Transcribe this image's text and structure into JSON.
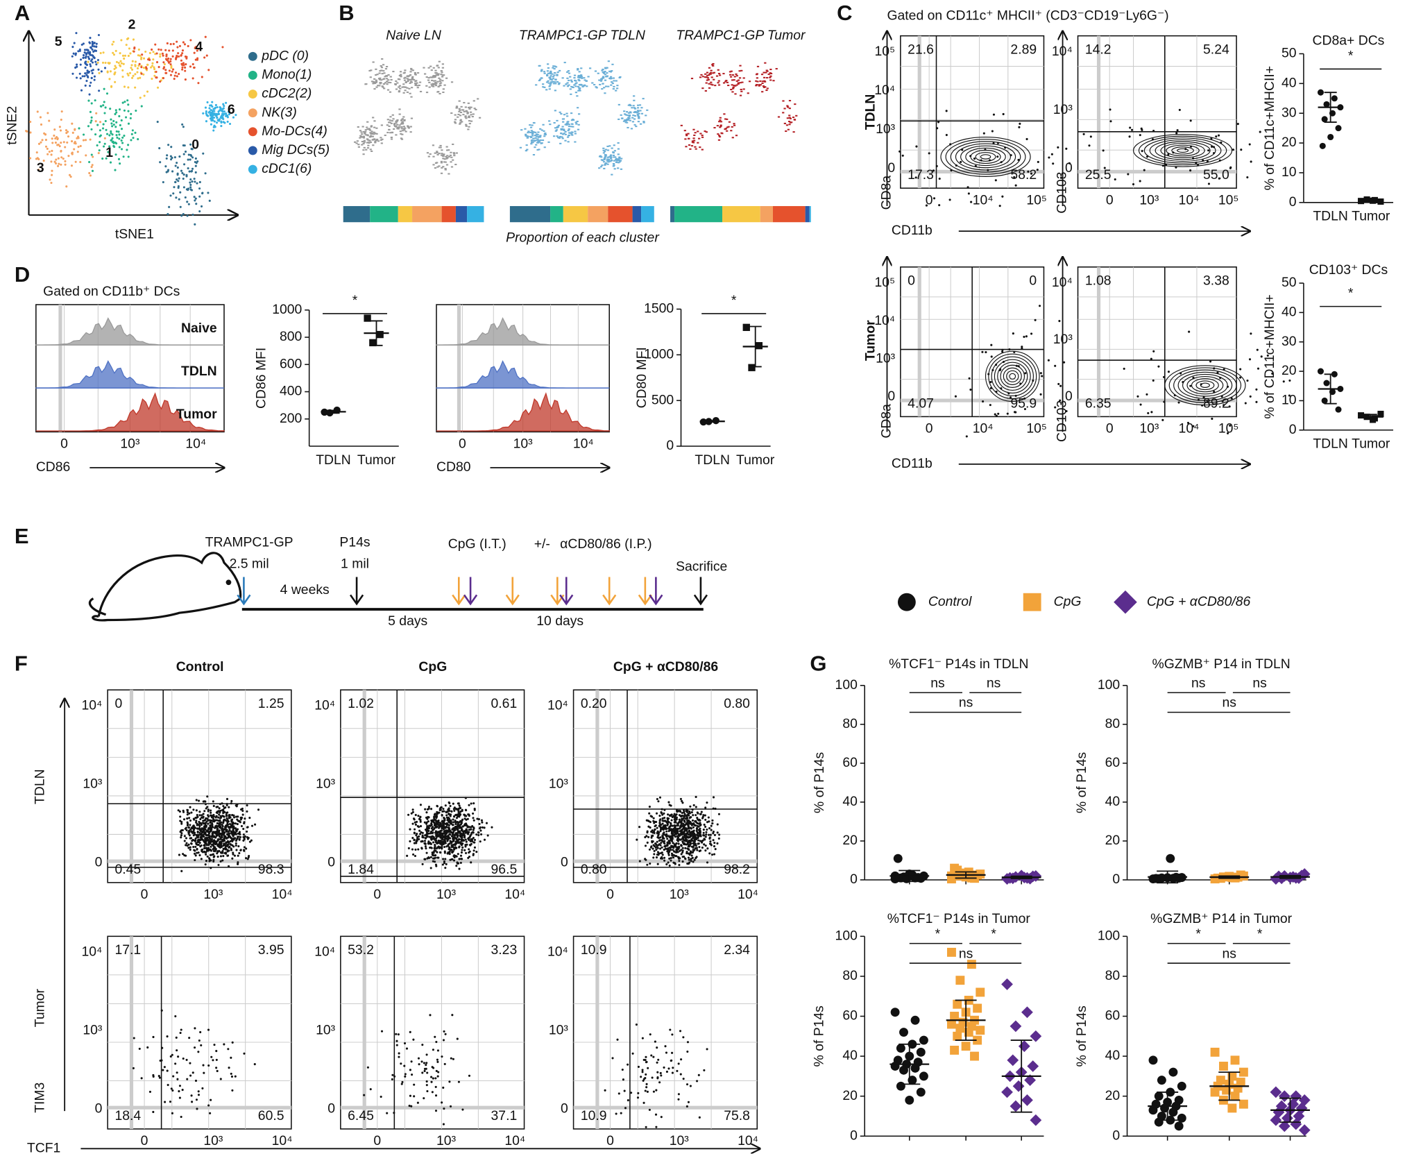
{
  "panels": {
    "A": {
      "label": "A",
      "x_axis": "tSNE1",
      "y_axis": "tSNE2",
      "cluster_numbers": [
        "0",
        "1",
        "2",
        "3",
        "4",
        "5",
        "6"
      ],
      "legend": [
        {
          "name": "pDC (0)",
          "color": "#2f6d8c"
        },
        {
          "name": "Mono(1)",
          "color": "#22b387"
        },
        {
          "name": "cDC2(2)",
          "color": "#f6c744"
        },
        {
          "name": "NK(3)",
          "color": "#f4a261"
        },
        {
          "name": "Mo-DCs(4)",
          "color": "#e5522d"
        },
        {
          "name": "Mig DCs(5)",
          "color": "#2a5aa8"
        },
        {
          "name": "cDC1(6)",
          "color": "#35b1e3"
        }
      ]
    },
    "B": {
      "label": "B",
      "titles": [
        "Naive LN",
        "TRAMPC1-GP TDLN",
        "TRAMPC1-GP Tumor"
      ],
      "caption": "Proportion of each cluster",
      "proportions": [
        [
          19,
          20,
          10,
          21,
          10,
          8,
          12
        ],
        [
          28,
          9,
          17,
          14,
          17,
          6,
          9
        ],
        [
          3,
          34,
          27,
          9,
          23,
          3,
          1
        ]
      ]
    },
    "C": {
      "label": "C",
      "title": "Gated on CD11c⁺ MHCII⁺ (CD3⁻CD19⁻Ly6G⁻)",
      "rows": [
        "TDLN",
        "Tumor"
      ],
      "x_axis": "CD11b",
      "y_axes": [
        "CD8a",
        "CD103"
      ],
      "flow": [
        {
          "quadrants": [
            "21.6",
            "2.89",
            "17.3",
            "58.2"
          ],
          "xticks": [
            "0",
            "10⁴",
            "10⁵"
          ],
          "yticks": [
            "10⁵",
            "10⁴",
            "10³",
            "0"
          ]
        },
        {
          "quadrants": [
            "14.2",
            "5.24",
            "25.5",
            "55.0"
          ],
          "xticks": [
            "0",
            "10³",
            "10⁴",
            "10⁵"
          ],
          "yticks": [
            "10⁴",
            "10³",
            "0"
          ]
        },
        {
          "quadrants": [
            "0",
            "0",
            "4.07",
            "95.9"
          ],
          "xticks": [
            "0",
            "10⁴",
            "10⁵"
          ],
          "yticks": [
            "10⁵",
            "10⁴",
            "10³",
            "0"
          ]
        },
        {
          "quadrants": [
            "1.08",
            "3.38",
            "6.35",
            "89.2"
          ],
          "xticks": [
            "0",
            "10³",
            "10⁴",
            "10⁵"
          ],
          "yticks": [
            "10⁴",
            "10³",
            "0"
          ]
        }
      ],
      "dotplots": [
        {
          "title": "CD8a+ DCs",
          "ylabel": "% of CD11c+MHCII+",
          "ylim": [
            0,
            50
          ],
          "yticks": [
            0,
            10,
            20,
            30,
            40,
            50
          ],
          "sig": [
            "*"
          ],
          "groups": [
            {
              "name": "TDLN",
              "points": [
                37,
                35,
                33,
                32,
                30,
                28,
                25,
                22,
                19
              ],
              "mean": 32,
              "sd": 5
            },
            {
              "name": "Tumor",
              "points": [
                0.5,
                0.8,
                1,
                0.3,
                0.6
              ],
              "mean": 0.6,
              "sd": 0.3
            }
          ]
        },
        {
          "title": "CD103⁺ DCs",
          "ylabel": "% of CD11c+MHCII+",
          "ylim": [
            0,
            50
          ],
          "yticks": [
            0,
            10,
            20,
            30,
            40,
            50
          ],
          "sig": [
            "*"
          ],
          "groups": [
            {
              "name": "TDLN",
              "points": [
                20,
                19,
                16,
                14,
                13,
                10,
                7
              ],
              "mean": 14,
              "sd": 5
            },
            {
              "name": "Tumor",
              "points": [
                5,
                4,
                4.5,
                5.5,
                3.5
              ],
              "mean": 4.5,
              "sd": 0.8
            }
          ]
        }
      ]
    },
    "D": {
      "label": "D",
      "title": "Gated on CD11b⁺ DCs",
      "hist_labels": [
        "Naive",
        "TDLN",
        "Tumor"
      ],
      "histograms": [
        {
          "x_axis": "CD86",
          "xticks": [
            "0",
            "10³",
            "10⁴"
          ]
        },
        {
          "x_axis": "CD80",
          "xticks": [
            "0",
            "10³",
            "10⁴"
          ]
        }
      ],
      "dotplots": [
        {
          "ylabel": "CD86 MFI",
          "ylim": [
            0,
            1000
          ],
          "yticks": [
            200,
            400,
            600,
            800,
            1000
          ],
          "sig": [
            "*"
          ],
          "groups": [
            {
              "name": "TDLN",
              "points": [
                250,
                265,
                245
              ],
              "mean": 253,
              "sd": 10
            },
            {
              "name": "Tumor",
              "points": [
                940,
                820,
                760
              ],
              "mean": 830,
              "sd": 90
            }
          ]
        },
        {
          "ylabel": "CD80 MFI",
          "ylim": [
            0,
            1500
          ],
          "yticks": [
            0,
            500,
            1000,
            1500
          ],
          "sig": [
            "*"
          ],
          "groups": [
            {
              "name": "TDLN",
              "points": [
                265,
                280,
                270
              ],
              "mean": 272,
              "sd": 8
            },
            {
              "name": "Tumor",
              "points": [
                1300,
                1100,
                860
              ],
              "mean": 1090,
              "sd": 220
            }
          ]
        }
      ]
    },
    "E": {
      "label": "E",
      "tumor": "TRAMPC1-GP",
      "tumor_dose": "2.5 mil",
      "cells": "P14s",
      "cells_dose": "1 mil",
      "interval1": "4 weeks",
      "treatment1": "CpG (I.T.)",
      "separator": "+/-",
      "treatment2": "αCD80/86 (I.P.)",
      "end": "Sacrifice",
      "interval2": "5 days",
      "interval3": "10 days",
      "legend": [
        {
          "name": "Control",
          "color": "#111111",
          "shape": "circle"
        },
        {
          "name": "CpG",
          "color": "#f2a33a",
          "shape": "square"
        },
        {
          "name": "CpG + αCD80/86",
          "color": "#5b2d8e",
          "shape": "diamond"
        }
      ]
    },
    "F": {
      "label": "F",
      "columns": [
        "Control",
        "CpG",
        "CpG + αCD80/86"
      ],
      "rows": [
        "TDLN",
        "Tumor"
      ],
      "x_axis": "TCF1",
      "y_axis": "TIM3",
      "flow": [
        {
          "quadrants": [
            "0",
            "1.25",
            "0.45",
            "98.3"
          ],
          "xticks": [
            "0",
            "10³",
            "10⁴"
          ],
          "yticks": [
            "10⁴",
            "10³",
            "0"
          ]
        },
        {
          "quadrants": [
            "1.02",
            "0.61",
            "1.84",
            "96.5"
          ],
          "xticks": [
            "0",
            "10³",
            "10⁴"
          ],
          "yticks": [
            "10⁴",
            "10³",
            "0"
          ]
        },
        {
          "quadrants": [
            "0.20",
            "0.80",
            "0.80",
            "98.2"
          ],
          "xticks": [
            "0",
            "10³",
            "10⁴"
          ],
          "yticks": [
            "10⁴",
            "10³",
            "0"
          ]
        },
        {
          "quadrants": [
            "17.1",
            "3.95",
            "18.4",
            "60.5"
          ],
          "xticks": [
            "0",
            "10³",
            "10⁴"
          ],
          "yticks": [
            "10⁴",
            "10³",
            "0"
          ]
        },
        {
          "quadrants": [
            "53.2",
            "3.23",
            "6.45",
            "37.1"
          ],
          "xticks": [
            "0",
            "10³",
            "10⁴"
          ],
          "yticks": [
            "10⁴",
            "10³",
            "0"
          ]
        },
        {
          "quadrants": [
            "10.9",
            "2.34",
            "10.9",
            "75.8"
          ],
          "xticks": [
            "0",
            "10³",
            "10⁴"
          ],
          "yticks": [
            "10⁴",
            "10³",
            "0"
          ]
        }
      ]
    },
    "G": {
      "label": "G",
      "ylabel": "% of P14s",
      "ylim": [
        0,
        100
      ],
      "yticks": [
        0,
        20,
        40,
        60,
        80,
        100
      ],
      "plots": [
        {
          "title": "%TCF1⁻ P14s in TDLN",
          "sig": [
            "ns",
            "ns",
            "ns"
          ],
          "groups": [
            {
              "points": [
                0.5,
                1,
                1.5,
                2,
                2.5,
                1,
                0.8,
                3,
                11,
                1.2,
                0.6,
                2
              ],
              "mean": 2,
              "sd": 2.8
            },
            {
              "points": [
                0.5,
                1,
                2,
                3,
                4,
                5,
                2.5,
                1.5,
                6,
                0.8,
                3.5,
                2
              ],
              "mean": 2.5,
              "sd": 1.6
            },
            {
              "points": [
                0.5,
                1,
                1.5,
                2,
                1.2,
                0.8,
                1.8,
                2.2,
                1,
                0.6
              ],
              "mean": 1.3,
              "sd": 0.6
            }
          ]
        },
        {
          "title": "%GZMB⁺ P14 in TDLN",
          "sig": [
            "ns",
            "ns",
            "ns"
          ],
          "groups": [
            {
              "points": [
                0.5,
                0.8,
                1,
                1.2,
                11,
                0.6,
                0.9,
                1.1,
                0.7,
                1.3
              ],
              "mean": 1.5,
              "sd": 3
            },
            {
              "points": [
                0.5,
                1,
                1.5,
                2,
                1.2,
                0.8,
                2.5,
                1.8,
                0.9,
                1.4
              ],
              "mean": 1.4,
              "sd": 0.6
            },
            {
              "points": [
                0.5,
                1,
                2,
                3,
                1.5,
                0.8,
                2.2,
                1.2,
                1.8,
                0.9
              ],
              "mean": 1.5,
              "sd": 0.7
            }
          ]
        },
        {
          "title": "%TCF1⁻ P14s in Tumor",
          "sig": [
            "*",
            "ns",
            "*"
          ],
          "groups": [
            {
              "points": [
                62,
                58,
                52,
                48,
                46,
                44,
                42,
                40,
                38,
                37,
                36,
                35,
                34,
                33,
                30,
                28,
                25,
                22,
                18
              ],
              "mean": 36,
              "sd": 10
            },
            {
              "points": [
                92,
                86,
                78,
                72,
                68,
                66,
                64,
                62,
                60,
                58,
                57,
                56,
                55,
                54,
                53,
                52,
                50,
                48,
                45,
                43,
                40
              ],
              "mean": 58,
              "sd": 10
            },
            {
              "points": [
                76,
                62,
                55,
                50,
                45,
                38,
                35,
                32,
                30,
                28,
                25,
                22,
                18,
                15,
                8
              ],
              "mean": 30,
              "sd": 18
            }
          ]
        },
        {
          "title": "%GZMB⁺ P14 in Tumor",
          "sig": [
            "*",
            "ns",
            "*"
          ],
          "groups": [
            {
              "points": [
                38,
                32,
                28,
                25,
                22,
                20,
                18,
                17,
                16,
                15,
                14,
                13,
                12,
                10,
                9,
                8,
                7,
                5
              ],
              "mean": 15,
              "sd": 7
            },
            {
              "points": [
                42,
                38,
                35,
                32,
                30,
                28,
                27,
                26,
                25,
                24,
                23,
                22,
                20,
                18,
                16,
                14
              ],
              "mean": 25,
              "sd": 7
            },
            {
              "points": [
                22,
                20,
                20,
                18,
                16,
                15,
                14,
                13,
                12,
                10,
                9,
                8,
                6,
                5,
                3
              ],
              "mean": 13,
              "sd": 6
            }
          ]
        }
      ]
    }
  }
}
